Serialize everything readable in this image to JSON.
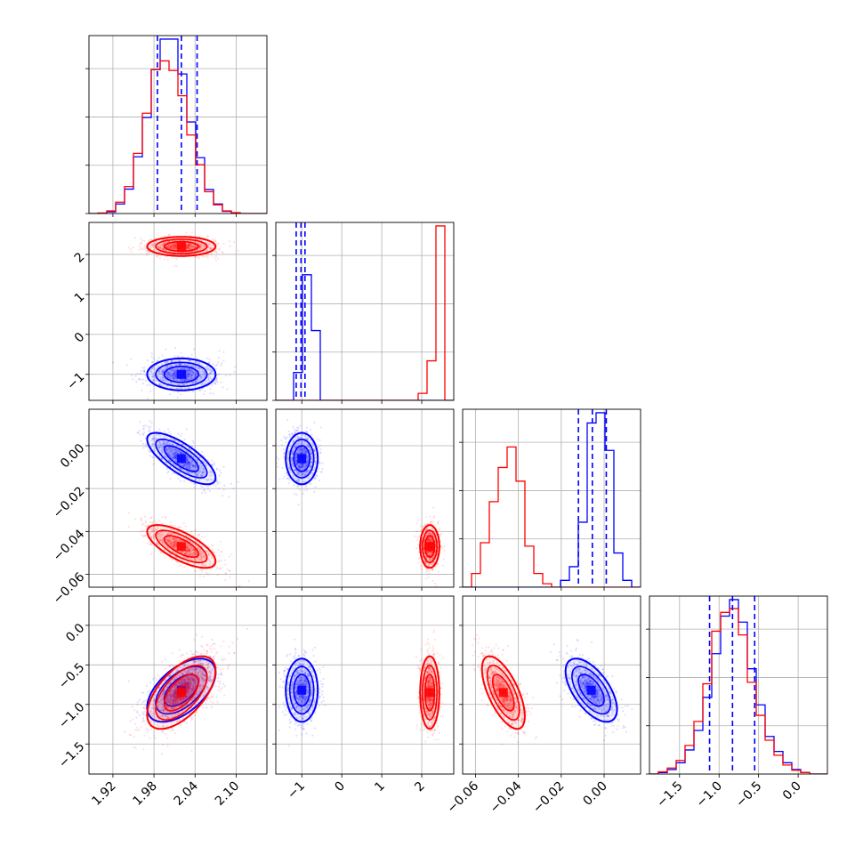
{
  "chart_data": {
    "type": "corner",
    "parameters": 4,
    "grid": true,
    "colors": {
      "blue": "#0000ff",
      "red": "#ff0000"
    },
    "series": [
      {
        "color": "blue",
        "means": [
          2.02,
          -1.0,
          -0.006,
          -0.82
        ],
        "sds": [
          0.025,
          0.2,
          0.006,
          0.2
        ],
        "corr": {
          "0_2": -0.75,
          "0_3": 0.55,
          "1_3": 0.0,
          "2_3": -0.6
        },
        "quantiles": [
          [
            1.985,
            2.02,
            2.043
          ],
          [
            -1.14,
            -1.02,
            -0.92
          ],
          [
            -0.012,
            -0.0055,
            0.001
          ],
          [
            -1.12,
            -0.83,
            -0.55
          ]
        ]
      },
      {
        "color": "red",
        "means": [
          2.02,
          2.2,
          -0.047,
          -0.85
        ],
        "sds": [
          0.025,
          0.12,
          0.005,
          0.23
        ],
        "corr": {
          "0_2": -0.7,
          "0_3": 0.6,
          "1_3": 0.0,
          "2_3": -0.65
        }
      }
    ],
    "axes": [
      {
        "range": [
          1.885,
          2.145
        ],
        "ticks": [
          1.92,
          1.98,
          2.04,
          2.1
        ],
        "tick_labels": [
          "1.92",
          "1.98",
          "2.04",
          "2.10"
        ]
      },
      {
        "range": [
          -1.65,
          2.8
        ],
        "ticks": [
          -1,
          0,
          1,
          2
        ],
        "tick_labels": [
          "−1",
          "0",
          "1",
          "2"
        ]
      },
      {
        "range": [
          -0.066,
          0.017
        ],
        "ticks": [
          -0.06,
          -0.04,
          -0.02,
          0.0
        ],
        "tick_labels": [
          "−0.06",
          "−0.04",
          "−0.02",
          "0.00"
        ]
      },
      {
        "range": [
          -1.88,
          0.37
        ],
        "ticks": [
          -1.5,
          -1.0,
          -0.5,
          0.0
        ],
        "tick_labels": [
          "−1.5",
          "−1.0",
          "−0.5",
          "0.0"
        ]
      }
    ],
    "histograms": [
      {
        "param": 0,
        "bins": [
          1.885,
          2.145,
          20
        ],
        "blue": [
          0,
          1,
          4,
          22,
          56,
          130,
          220,
          330,
          400,
          400,
          320,
          210,
          128,
          55,
          22,
          5,
          1,
          0,
          0,
          0
        ],
        "red": [
          0,
          1,
          6,
          26,
          62,
          138,
          230,
          330,
          350,
          328,
          270,
          180,
          112,
          50,
          20,
          6,
          2,
          0,
          0,
          0
        ]
      },
      {
        "param": 1,
        "bins": [
          -1.65,
          2.8,
          20
        ],
        "blue": [
          0,
          0,
          60,
          270,
          150,
          0,
          0,
          0,
          0,
          0,
          0,
          0,
          0,
          0,
          0,
          0,
          0,
          0,
          0,
          0
        ],
        "red": [
          0,
          0,
          0,
          0,
          0,
          0,
          0,
          0,
          0,
          0,
          0,
          0,
          0,
          0,
          0,
          0,
          15,
          85,
          375,
          0
        ]
      },
      {
        "param": 2,
        "bins": [
          -0.066,
          0.017,
          20
        ],
        "blue": [
          0,
          0,
          0,
          0,
          0,
          0,
          0,
          0,
          0,
          0,
          0,
          10,
          30,
          95,
          240,
          255,
          200,
          50,
          10,
          0
        ],
        "red": [
          0,
          20,
          65,
          125,
          175,
          205,
          155,
          60,
          20,
          5,
          0,
          0,
          0,
          0,
          0,
          0,
          0,
          0,
          0,
          0
        ]
      },
      {
        "param": 3,
        "bins": [
          -1.88,
          0.37,
          20
        ],
        "blue": [
          0,
          2,
          6,
          15,
          32,
          58,
          102,
          160,
          210,
          232,
          202,
          140,
          92,
          50,
          30,
          15,
          6,
          2,
          0,
          0
        ],
        "red": [
          0,
          3,
          8,
          18,
          38,
          70,
          120,
          190,
          215,
          220,
          185,
          122,
          78,
          45,
          25,
          12,
          5,
          2,
          0,
          0
        ]
      }
    ]
  }
}
